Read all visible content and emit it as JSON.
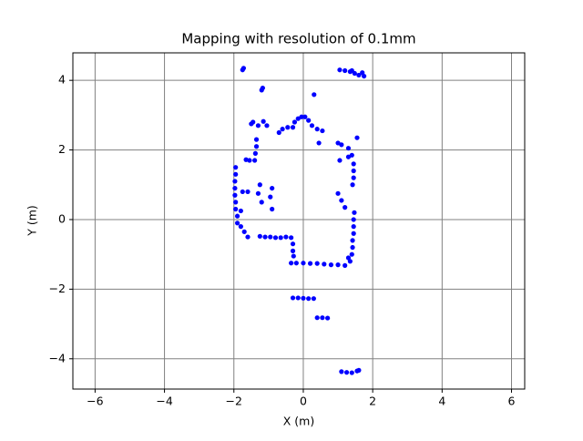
{
  "chart_data": {
    "type": "scatter",
    "title": "Mapping with resolution of 0.1mm",
    "xlabel": "X (m)",
    "ylabel": "Y (m)",
    "color": "#0000ff",
    "grid": true,
    "xlim": [
      -6.64,
      6.38
    ],
    "ylim": [
      -4.87,
      4.79
    ],
    "xticks": [
      {
        "value": -6,
        "label": "−6"
      },
      {
        "value": -4,
        "label": "−4"
      },
      {
        "value": -2,
        "label": "−2"
      },
      0,
      2,
      4,
      6
    ],
    "yticks": [
      {
        "value": -4,
        "label": "−4"
      },
      {
        "value": -2,
        "label": "−2"
      },
      0,
      2,
      4
    ],
    "x": [
      -1.75,
      -1.72,
      -1.2,
      -1.17,
      0.31,
      1.05,
      1.2,
      1.35,
      1.48,
      1.6,
      1.7,
      1.75,
      1.4,
      -1.5,
      -1.45,
      -1.3,
      -1.15,
      -1.05,
      -0.7,
      -0.6,
      -0.45,
      -0.3,
      -0.25,
      -0.15,
      -0.05,
      0.05,
      0.15,
      0.25,
      0.4,
      0.55,
      0.45,
      1.0,
      1.1,
      1.3,
      1.4,
      1.55,
      1.45,
      1.45,
      1.45,
      1.42,
      1.05,
      1.3,
      -1.35,
      -1.35,
      -1.38,
      -1.4,
      -1.55,
      -1.65,
      -1.95,
      -1.95,
      -1.97,
      -1.97,
      -1.97,
      -1.95,
      -1.95,
      -1.9,
      -1.75,
      -1.6,
      -1.3,
      -1.25,
      -1.2,
      -0.9,
      -0.95,
      -0.9,
      -1.9,
      -1.8,
      -1.7,
      -1.6,
      -1.8,
      -1.25,
      -1.1,
      -0.95,
      -0.8,
      -0.65,
      -0.5,
      -0.35,
      -0.3,
      -0.3,
      -0.28,
      -0.35,
      -0.2,
      0,
      0.2,
      0.4,
      0.6,
      0.8,
      1.0,
      1.2,
      1.35,
      1.4,
      1.42,
      1.42,
      1.45,
      1.45,
      1.45,
      1.47,
      1.0,
      1.1,
      1.2,
      1.3,
      -0.3,
      -0.15,
      0,
      0.15,
      0.3,
      0.4,
      0.55,
      0.7,
      1.1,
      1.25,
      1.4,
      1.55,
      1.6
    ],
    "values": [
      4.3,
      4.35,
      3.72,
      3.78,
      3.59,
      4.3,
      4.28,
      4.25,
      4.2,
      4.15,
      4.22,
      4.12,
      4.28,
      2.75,
      2.8,
      2.7,
      2.82,
      2.7,
      2.5,
      2.6,
      2.65,
      2.65,
      2.8,
      2.9,
      2.95,
      2.95,
      2.85,
      2.7,
      2.6,
      2.55,
      2.2,
      2.2,
      2.15,
      2.05,
      1.85,
      2.35,
      1.6,
      1.4,
      1.2,
      1.0,
      1.7,
      1.8,
      2.3,
      2.1,
      1.9,
      1.7,
      1.7,
      1.72,
      1.5,
      1.3,
      1.1,
      0.9,
      0.7,
      0.5,
      0.3,
      0.1,
      0.8,
      0.8,
      0.75,
      1.0,
      0.5,
      0.9,
      0.65,
      0.3,
      -0.1,
      -0.2,
      -0.35,
      -0.5,
      0.25,
      -0.48,
      -0.5,
      -0.5,
      -0.52,
      -0.52,
      -0.5,
      -0.52,
      -0.7,
      -0.9,
      -1.05,
      -1.25,
      -1.25,
      -1.25,
      -1.26,
      -1.26,
      -1.28,
      -1.3,
      -1.3,
      -1.32,
      -1.2,
      -1.0,
      -0.8,
      -0.6,
      -0.4,
      -0.2,
      0.0,
      0.2,
      0.75,
      0.55,
      0.35,
      -1.1,
      -2.25,
      -2.25,
      -2.26,
      -2.27,
      -2.27,
      -2.82,
      -2.82,
      -2.83,
      -4.37,
      -4.39,
      -4.4,
      -4.35,
      -4.33
    ]
  }
}
